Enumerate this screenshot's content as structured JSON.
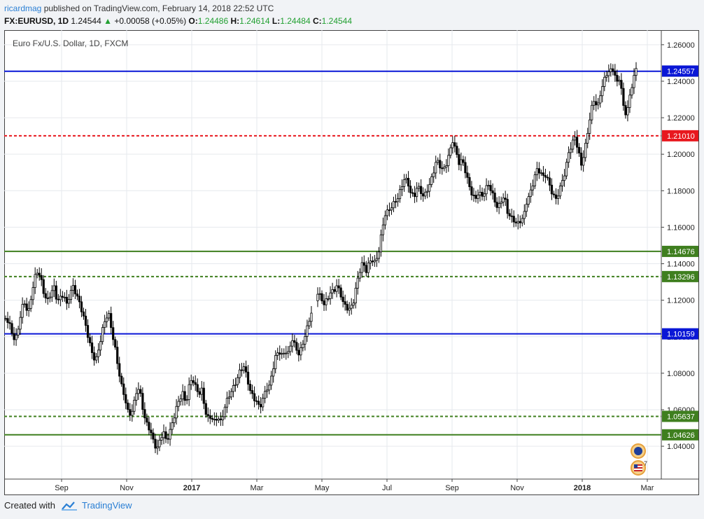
{
  "header": {
    "author": "ricardmag",
    "published": "published on TradingView.com, February 14, 2018 22:52 UTC",
    "symbol": "FX:EURUSD, 1D",
    "last": "1.24544",
    "change_arrow": "▲",
    "change": "+0.00058 (+0.05%)",
    "o_label": "O:",
    "o_value": "1.24486",
    "h_label": "H:",
    "h_value": "1.24614",
    "l_label": "L:",
    "l_value": "1.24484",
    "c_label": "C:",
    "c_value": "1.24544"
  },
  "footer": {
    "created_with": "Created with",
    "brand": "TradingView"
  },
  "badges": {
    "count": "7"
  },
  "colors": {
    "blue": "#0a17d6",
    "red": "#e8181e",
    "green": "#3f7f1f",
    "candle": "#000000",
    "grid": "#e6e9ee"
  },
  "chart_data": {
    "type": "candlestick",
    "title": "Euro Fx/U.S. Dollar, 1D, FXCM",
    "ylim": [
      1.022,
      1.268
    ],
    "y_ticks": [
      "1.26000",
      "1.24000",
      "1.22000",
      "1.20000",
      "1.18000",
      "1.16000",
      "1.14000",
      "1.12000",
      "1.10000",
      "1.08000",
      "1.06000",
      "1.04000"
    ],
    "x_ticks": [
      {
        "label": "Sep",
        "bold": false
      },
      {
        "label": "Nov",
        "bold": false
      },
      {
        "label": "2017",
        "bold": true
      },
      {
        "label": "Mar",
        "bold": false
      },
      {
        "label": "May",
        "bold": false
      },
      {
        "label": "Jul",
        "bold": false
      },
      {
        "label": "Sep",
        "bold": false
      },
      {
        "label": "Nov",
        "bold": false
      },
      {
        "label": "2018",
        "bold": true
      },
      {
        "label": "Mar",
        "bold": false
      }
    ],
    "horizontal_lines": [
      {
        "value": 1.24544,
        "label": "1.24544",
        "color": "#0a17d6",
        "style": "solid",
        "label_style": "plain"
      },
      {
        "value": 1.24557,
        "label": "1.24557",
        "color": "#0a17d6",
        "style": "none",
        "label_style": "box"
      },
      {
        "value": 1.2101,
        "label": "1.21010",
        "color": "#e8181e",
        "style": "dotted",
        "label_style": "box"
      },
      {
        "value": 1.14676,
        "label": "1.14676",
        "color": "#3f7f1f",
        "style": "solid",
        "label_style": "box"
      },
      {
        "value": 1.13296,
        "label": "1.13296",
        "color": "#3f7f1f",
        "style": "dotted",
        "label_style": "box"
      },
      {
        "value": 1.10159,
        "label": "1.10159",
        "color": "#0a17d6",
        "style": "solid",
        "label_style": "box"
      },
      {
        "value": 1.05637,
        "label": "1.05637",
        "color": "#3f7f1f",
        "style": "dotted",
        "label_style": "box"
      },
      {
        "value": 1.04626,
        "label": "1.04626",
        "color": "#3f7f1f",
        "style": "solid",
        "label_style": "box"
      }
    ],
    "price_path": [
      1.11,
      1.107,
      1.1,
      1.096,
      1.104,
      1.116,
      1.12,
      1.114,
      1.124,
      1.133,
      1.136,
      1.13,
      1.121,
      1.118,
      1.123,
      1.128,
      1.121,
      1.123,
      1.125,
      1.118,
      1.123,
      1.126,
      1.121,
      1.117,
      1.112,
      1.106,
      1.099,
      1.092,
      1.088,
      1.094,
      1.102,
      1.108,
      1.111,
      1.102,
      1.094,
      1.084,
      1.075,
      1.069,
      1.06,
      1.057,
      1.063,
      1.071,
      1.066,
      1.056,
      1.052,
      1.05,
      1.044,
      1.04,
      1.044,
      1.048,
      1.041,
      1.046,
      1.052,
      1.06,
      1.066,
      1.071,
      1.065,
      1.074,
      1.078,
      1.072,
      1.067,
      1.069,
      1.058,
      1.055,
      1.057,
      1.055,
      1.058,
      1.054,
      1.061,
      1.065,
      1.068,
      1.071,
      1.076,
      1.082,
      1.085,
      1.08,
      1.072,
      1.068,
      1.064,
      1.06,
      1.064,
      1.07,
      1.072,
      1.082,
      1.091,
      1.094,
      1.091,
      1.093,
      1.09,
      1.098,
      1.093,
      1.089,
      1.093,
      1.101,
      1.108,
      1.115,
      1.12,
      1.124,
      1.121,
      1.116,
      1.119,
      1.123,
      1.125,
      1.129,
      1.126,
      1.12,
      1.117,
      1.115,
      1.117,
      1.126,
      1.134,
      1.14,
      1.136,
      1.142,
      1.144,
      1.142,
      1.148,
      1.158,
      1.166,
      1.167,
      1.17,
      1.173,
      1.177,
      1.183,
      1.189,
      1.186,
      1.179,
      1.176,
      1.181,
      1.178,
      1.175,
      1.18,
      1.185,
      1.192,
      1.199,
      1.195,
      1.191,
      1.194,
      1.199,
      1.206,
      1.2,
      1.195,
      1.198,
      1.192,
      1.185,
      1.179,
      1.175,
      1.178,
      1.175,
      1.178,
      1.183,
      1.18,
      1.176,
      1.172,
      1.176,
      1.178,
      1.168,
      1.164,
      1.162,
      1.16,
      1.163,
      1.166,
      1.176,
      1.18,
      1.186,
      1.192,
      1.19,
      1.186,
      1.187,
      1.182,
      1.178,
      1.176,
      1.181,
      1.187,
      1.192,
      1.201,
      1.204,
      1.208,
      1.2,
      1.193,
      1.202,
      1.214,
      1.226,
      1.232,
      1.226,
      1.234,
      1.239,
      1.243,
      1.244,
      1.246,
      1.239,
      1.244,
      1.228,
      1.223,
      1.232,
      1.24,
      1.245
    ]
  }
}
